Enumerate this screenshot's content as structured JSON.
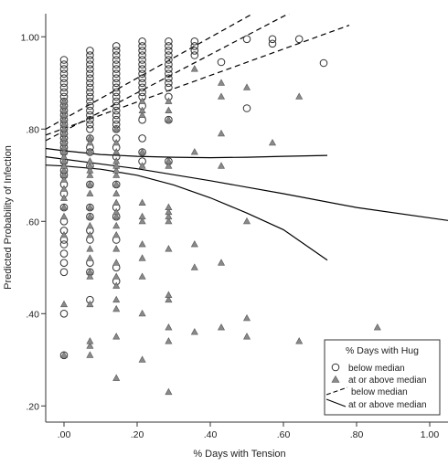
{
  "chart_data": {
    "type": "scatter",
    "title": "",
    "xlabel": "% Days with Tension",
    "ylabel": "Predicted Probability of Infection",
    "xlim": [
      -0.05,
      1.05
    ],
    "ylim": [
      0.165,
      1.05
    ],
    "x_ticks": [
      0,
      0.2,
      0.4,
      0.6,
      0.8,
      1.0
    ],
    "x_tick_labels": [
      ".00",
      ".20",
      ".40",
      ".60",
      ".80",
      "1.00"
    ],
    "y_ticks": [
      0.2,
      0.4,
      0.6,
      0.8,
      1.0
    ],
    "y_tick_labels": [
      ".20",
      ".40",
      ".60",
      ".80",
      "1.00"
    ],
    "grid": false,
    "legend": {
      "title": "% Days with Hug",
      "placement": "bottom-right",
      "entries": [
        "below median",
        "at or above median",
        "below median",
        "at or above median"
      ]
    },
    "series": [
      {
        "name": "below median",
        "kind": "points",
        "marker": "circle",
        "points": [
          [
            0.0,
            0.31
          ],
          [
            0.0,
            0.4
          ],
          [
            0.0,
            0.49
          ],
          [
            0.0,
            0.51
          ],
          [
            0.0,
            0.53
          ],
          [
            0.0,
            0.55
          ],
          [
            0.0,
            0.56
          ],
          [
            0.0,
            0.58
          ],
          [
            0.0,
            0.6
          ],
          [
            0.0,
            0.63
          ],
          [
            0.0,
            0.66
          ],
          [
            0.0,
            0.68
          ],
          [
            0.0,
            0.7
          ],
          [
            0.0,
            0.71
          ],
          [
            0.0,
            0.73
          ],
          [
            0.0,
            0.75
          ],
          [
            0.0,
            0.76
          ],
          [
            0.0,
            0.77
          ],
          [
            0.0,
            0.78
          ],
          [
            0.0,
            0.79
          ],
          [
            0.0,
            0.8
          ],
          [
            0.0,
            0.81
          ],
          [
            0.0,
            0.82
          ],
          [
            0.0,
            0.83
          ],
          [
            0.0,
            0.84
          ],
          [
            0.0,
            0.85
          ],
          [
            0.0,
            0.86
          ],
          [
            0.0,
            0.87
          ],
          [
            0.0,
            0.88
          ],
          [
            0.0,
            0.89
          ],
          [
            0.0,
            0.9
          ],
          [
            0.0,
            0.91
          ],
          [
            0.0,
            0.92
          ],
          [
            0.0,
            0.93
          ],
          [
            0.0,
            0.94
          ],
          [
            0.0,
            0.95
          ],
          [
            0.071,
            0.43
          ],
          [
            0.071,
            0.49
          ],
          [
            0.071,
            0.51
          ],
          [
            0.071,
            0.56
          ],
          [
            0.071,
            0.58
          ],
          [
            0.071,
            0.61
          ],
          [
            0.071,
            0.63
          ],
          [
            0.071,
            0.68
          ],
          [
            0.071,
            0.72
          ],
          [
            0.071,
            0.75
          ],
          [
            0.071,
            0.76
          ],
          [
            0.071,
            0.78
          ],
          [
            0.071,
            0.8
          ],
          [
            0.071,
            0.81
          ],
          [
            0.071,
            0.82
          ],
          [
            0.071,
            0.83
          ],
          [
            0.071,
            0.84
          ],
          [
            0.071,
            0.85
          ],
          [
            0.071,
            0.86
          ],
          [
            0.071,
            0.87
          ],
          [
            0.071,
            0.88
          ],
          [
            0.071,
            0.89
          ],
          [
            0.071,
            0.9
          ],
          [
            0.071,
            0.91
          ],
          [
            0.071,
            0.92
          ],
          [
            0.071,
            0.93
          ],
          [
            0.071,
            0.94
          ],
          [
            0.071,
            0.95
          ],
          [
            0.071,
            0.96
          ],
          [
            0.071,
            0.97
          ],
          [
            0.143,
            0.47
          ],
          [
            0.143,
            0.5
          ],
          [
            0.143,
            0.56
          ],
          [
            0.143,
            0.61
          ],
          [
            0.143,
            0.63
          ],
          [
            0.143,
            0.68
          ],
          [
            0.143,
            0.74
          ],
          [
            0.143,
            0.76
          ],
          [
            0.143,
            0.78
          ],
          [
            0.143,
            0.8
          ],
          [
            0.143,
            0.81
          ],
          [
            0.143,
            0.82
          ],
          [
            0.143,
            0.83
          ],
          [
            0.143,
            0.84
          ],
          [
            0.143,
            0.85
          ],
          [
            0.143,
            0.86
          ],
          [
            0.143,
            0.87
          ],
          [
            0.143,
            0.88
          ],
          [
            0.143,
            0.89
          ],
          [
            0.143,
            0.9
          ],
          [
            0.143,
            0.91
          ],
          [
            0.143,
            0.92
          ],
          [
            0.143,
            0.93
          ],
          [
            0.143,
            0.94
          ],
          [
            0.143,
            0.95
          ],
          [
            0.143,
            0.96
          ],
          [
            0.143,
            0.97
          ],
          [
            0.143,
            0.98
          ],
          [
            0.214,
            0.73
          ],
          [
            0.214,
            0.75
          ],
          [
            0.214,
            0.78
          ],
          [
            0.214,
            0.82
          ],
          [
            0.214,
            0.85
          ],
          [
            0.214,
            0.87
          ],
          [
            0.214,
            0.88
          ],
          [
            0.214,
            0.89
          ],
          [
            0.214,
            0.9
          ],
          [
            0.214,
            0.91
          ],
          [
            0.214,
            0.92
          ],
          [
            0.214,
            0.93
          ],
          [
            0.214,
            0.94
          ],
          [
            0.214,
            0.95
          ],
          [
            0.214,
            0.96
          ],
          [
            0.214,
            0.97
          ],
          [
            0.214,
            0.98
          ],
          [
            0.214,
            0.99
          ],
          [
            0.286,
            0.73
          ],
          [
            0.286,
            0.82
          ],
          [
            0.286,
            0.87
          ],
          [
            0.286,
            0.89
          ],
          [
            0.286,
            0.9
          ],
          [
            0.286,
            0.91
          ],
          [
            0.286,
            0.92
          ],
          [
            0.286,
            0.93
          ],
          [
            0.286,
            0.94
          ],
          [
            0.286,
            0.95
          ],
          [
            0.286,
            0.96
          ],
          [
            0.286,
            0.97
          ],
          [
            0.286,
            0.98
          ],
          [
            0.286,
            0.99
          ],
          [
            0.357,
            0.96
          ],
          [
            0.357,
            0.97
          ],
          [
            0.357,
            0.98
          ],
          [
            0.357,
            0.99
          ],
          [
            0.43,
            0.945
          ],
          [
            0.5,
            0.845
          ],
          [
            0.5,
            0.995
          ],
          [
            0.57,
            0.985
          ],
          [
            0.57,
            0.995
          ],
          [
            0.643,
            0.995
          ],
          [
            0.71,
            0.943
          ]
        ]
      },
      {
        "name": "at or above median",
        "kind": "points",
        "marker": "triangle",
        "points": [
          [
            0.0,
            0.31
          ],
          [
            0.0,
            0.42
          ],
          [
            0.0,
            0.57
          ],
          [
            0.0,
            0.61
          ],
          [
            0.0,
            0.63
          ],
          [
            0.0,
            0.65
          ],
          [
            0.0,
            0.67
          ],
          [
            0.0,
            0.69
          ],
          [
            0.0,
            0.7
          ],
          [
            0.0,
            0.71
          ],
          [
            0.0,
            0.72
          ],
          [
            0.0,
            0.73
          ],
          [
            0.0,
            0.74
          ],
          [
            0.0,
            0.75
          ],
          [
            0.0,
            0.76
          ],
          [
            0.0,
            0.77
          ],
          [
            0.0,
            0.78
          ],
          [
            0.0,
            0.79
          ],
          [
            0.0,
            0.8
          ],
          [
            0.0,
            0.81
          ],
          [
            0.0,
            0.82
          ],
          [
            0.0,
            0.83
          ],
          [
            0.0,
            0.84
          ],
          [
            0.0,
            0.85
          ],
          [
            0.0,
            0.86
          ],
          [
            0.071,
            0.31
          ],
          [
            0.071,
            0.33
          ],
          [
            0.071,
            0.34
          ],
          [
            0.071,
            0.42
          ],
          [
            0.071,
            0.48
          ],
          [
            0.071,
            0.49
          ],
          [
            0.071,
            0.52
          ],
          [
            0.071,
            0.54
          ],
          [
            0.071,
            0.57
          ],
          [
            0.071,
            0.59
          ],
          [
            0.071,
            0.61
          ],
          [
            0.071,
            0.63
          ],
          [
            0.071,
            0.66
          ],
          [
            0.071,
            0.68
          ],
          [
            0.071,
            0.7
          ],
          [
            0.071,
            0.71
          ],
          [
            0.071,
            0.72
          ],
          [
            0.071,
            0.73
          ],
          [
            0.071,
            0.75
          ],
          [
            0.071,
            0.77
          ],
          [
            0.071,
            0.78
          ],
          [
            0.143,
            0.26
          ],
          [
            0.143,
            0.35
          ],
          [
            0.143,
            0.41
          ],
          [
            0.143,
            0.43
          ],
          [
            0.143,
            0.46
          ],
          [
            0.143,
            0.48
          ],
          [
            0.143,
            0.51
          ],
          [
            0.143,
            0.54
          ],
          [
            0.143,
            0.57
          ],
          [
            0.143,
            0.59
          ],
          [
            0.143,
            0.61
          ],
          [
            0.143,
            0.62
          ],
          [
            0.143,
            0.64
          ],
          [
            0.143,
            0.66
          ],
          [
            0.143,
            0.68
          ],
          [
            0.143,
            0.7
          ],
          [
            0.143,
            0.71
          ],
          [
            0.143,
            0.72
          ],
          [
            0.143,
            0.73
          ],
          [
            0.143,
            0.75
          ],
          [
            0.143,
            0.77
          ],
          [
            0.143,
            0.8
          ],
          [
            0.214,
            0.3
          ],
          [
            0.214,
            0.4
          ],
          [
            0.214,
            0.48
          ],
          [
            0.214,
            0.52
          ],
          [
            0.214,
            0.55
          ],
          [
            0.214,
            0.6
          ],
          [
            0.214,
            0.61
          ],
          [
            0.214,
            0.64
          ],
          [
            0.214,
            0.72
          ],
          [
            0.214,
            0.75
          ],
          [
            0.214,
            0.83
          ],
          [
            0.214,
            0.84
          ],
          [
            0.214,
            0.86
          ],
          [
            0.286,
            0.23
          ],
          [
            0.286,
            0.34
          ],
          [
            0.286,
            0.37
          ],
          [
            0.286,
            0.43
          ],
          [
            0.286,
            0.44
          ],
          [
            0.286,
            0.54
          ],
          [
            0.286,
            0.6
          ],
          [
            0.286,
            0.61
          ],
          [
            0.286,
            0.62
          ],
          [
            0.286,
            0.63
          ],
          [
            0.286,
            0.72
          ],
          [
            0.286,
            0.73
          ],
          [
            0.286,
            0.82
          ],
          [
            0.286,
            0.84
          ],
          [
            0.286,
            0.86
          ],
          [
            0.357,
            0.36
          ],
          [
            0.357,
            0.5
          ],
          [
            0.357,
            0.55
          ],
          [
            0.357,
            0.75
          ],
          [
            0.357,
            0.93
          ],
          [
            0.43,
            0.37
          ],
          [
            0.43,
            0.51
          ],
          [
            0.43,
            0.72
          ],
          [
            0.43,
            0.79
          ],
          [
            0.43,
            0.87
          ],
          [
            0.43,
            0.9
          ],
          [
            0.5,
            0.35
          ],
          [
            0.5,
            0.39
          ],
          [
            0.5,
            0.6
          ],
          [
            0.5,
            0.89
          ],
          [
            0.57,
            0.77
          ],
          [
            0.643,
            0.34
          ],
          [
            0.643,
            0.87
          ],
          [
            0.857,
            0.37
          ]
        ]
      },
      {
        "name": "below median",
        "kind": "fit",
        "style": "dashed",
        "lines": [
          [
            [
              -0.05,
              0.775
            ],
            [
              0.65,
              1.065
            ]
          ],
          [
            [
              -0.05,
              0.787
            ],
            [
              0.78,
              1.025
            ]
          ],
          [
            [
              -0.05,
              0.8
            ],
            [
              0.55,
              1.065
            ]
          ]
        ]
      },
      {
        "name": "at or above median",
        "kind": "fit",
        "style": "solid",
        "lines": [
          [
            [
              -0.05,
              0.758
            ],
            [
              0.0,
              0.753
            ],
            [
              0.1,
              0.745
            ],
            [
              0.2,
              0.741
            ],
            [
              0.3,
              0.739
            ],
            [
              0.4,
              0.738
            ],
            [
              0.5,
              0.739
            ],
            [
              0.6,
              0.741
            ],
            [
              0.72,
              0.743
            ]
          ],
          [
            [
              -0.05,
              0.74
            ],
            [
              0.2,
              0.714
            ],
            [
              0.4,
              0.688
            ],
            [
              0.6,
              0.66
            ],
            [
              0.8,
              0.63
            ],
            [
              1.05,
              0.602
            ]
          ],
          [
            [
              -0.05,
              0.722
            ],
            [
              0.0,
              0.72
            ],
            [
              0.1,
              0.713
            ],
            [
              0.2,
              0.7
            ],
            [
              0.3,
              0.679
            ],
            [
              0.4,
              0.651
            ],
            [
              0.5,
              0.618
            ],
            [
              0.6,
              0.582
            ],
            [
              0.72,
              0.516
            ]
          ]
        ]
      }
    ]
  }
}
